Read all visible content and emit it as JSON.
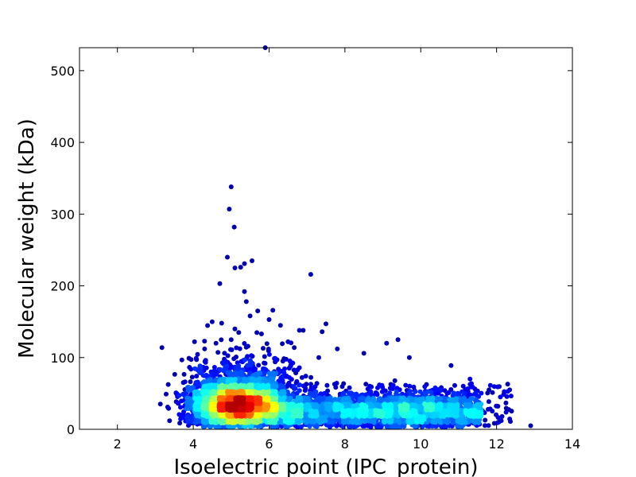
{
  "chart_data": {
    "type": "scatter",
    "title": "",
    "xlabel": "Isoelectric point (IPC_protein)",
    "ylabel": "Molecular weight (kDa)",
    "xlim": [
      1,
      14
    ],
    "ylim": [
      0,
      532
    ],
    "xticks": [
      2,
      4,
      6,
      8,
      10,
      12,
      14
    ],
    "yticks": [
      0,
      100,
      200,
      300,
      400,
      500
    ],
    "colormap": "jet (point density)",
    "grid": false,
    "legend": "none",
    "points": [
      [
        5.0,
        338
      ],
      [
        4.95,
        307
      ],
      [
        5.08,
        282
      ],
      [
        4.9,
        240
      ],
      [
        5.55,
        235
      ],
      [
        5.35,
        231
      ],
      [
        5.1,
        225
      ],
      [
        5.25,
        226
      ],
      [
        7.1,
        216
      ],
      [
        4.7,
        203
      ],
      [
        5.35,
        192
      ],
      [
        5.4,
        178
      ],
      [
        6.1,
        166
      ],
      [
        5.7,
        165
      ],
      [
        5.5,
        158
      ],
      [
        4.5,
        150
      ],
      [
        4.75,
        148
      ],
      [
        6.0,
        153
      ],
      [
        6.3,
        145
      ],
      [
        7.5,
        147
      ],
      [
        5.1,
        140
      ],
      [
        6.9,
        138
      ],
      [
        6.8,
        138
      ],
      [
        7.4,
        136
      ],
      [
        5.2,
        135
      ],
      [
        5.8,
        133
      ],
      [
        9.4,
        125
      ],
      [
        9.1,
        120
      ],
      [
        4.6,
        120
      ],
      [
        5.0,
        125
      ],
      [
        6.5,
        122
      ],
      [
        7.8,
        112
      ],
      [
        4.3,
        112
      ],
      [
        8.5,
        106
      ],
      [
        9.7,
        100
      ],
      [
        10.8,
        89
      ],
      [
        11.3,
        70
      ],
      [
        11.8,
        55
      ],
      [
        12.1,
        45
      ],
      [
        12.9,
        5
      ],
      [
        5.9,
        532
      ],
      [
        3.35,
        29
      ]
    ]
  }
}
